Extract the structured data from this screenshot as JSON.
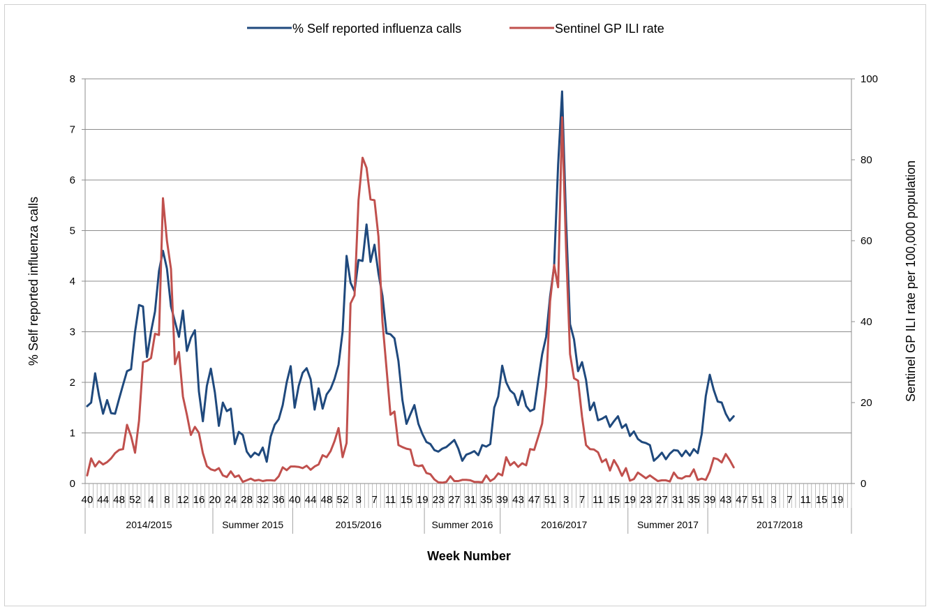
{
  "chart_data": {
    "type": "line",
    "title": "",
    "xlabel": "Week Number",
    "ylabel_left": "% Self reported influenza calls",
    "ylabel_right": "Sentinel GP ILI rate per 100,000 population",
    "ylim_left": [
      0,
      8
    ],
    "ylim_right": [
      0,
      100
    ],
    "yticks_left": [
      0,
      1,
      2,
      3,
      4,
      5,
      6,
      7,
      8
    ],
    "yticks_right": [
      0,
      20,
      40,
      60,
      80,
      100
    ],
    "grid": "horizontal",
    "legend_position": "top",
    "week_start": 40,
    "week_count": 192,
    "week_tick_labels": [
      "40",
      "44",
      "48",
      "52",
      "4",
      "8",
      "12",
      "16",
      "20",
      "24",
      "28",
      "32",
      "36",
      "40",
      "44",
      "48",
      "52",
      "3",
      "7",
      "11",
      "15",
      "19",
      "23",
      "27",
      "31",
      "35",
      "39",
      "43",
      "47",
      "51",
      "3",
      "7",
      "11",
      "15",
      "19",
      "23",
      "27",
      "31",
      "35",
      "39",
      "43",
      "47",
      "51",
      "3",
      "7",
      "11",
      "15",
      "19"
    ],
    "seasons": [
      {
        "label": "2014/2015",
        "start_index": 0,
        "end_index": 32
      },
      {
        "label": "Summer 2015",
        "start_index": 32,
        "end_index": 52
      },
      {
        "label": "2015/2016",
        "start_index": 52,
        "end_index": 85
      },
      {
        "label": "Summer 2016",
        "start_index": 85,
        "end_index": 104
      },
      {
        "label": "2016/2017",
        "start_index": 104,
        "end_index": 136
      },
      {
        "label": "Summer 2017",
        "start_index": 136,
        "end_index": 156
      },
      {
        "label": "2017/2018",
        "start_index": 156,
        "end_index": 192
      }
    ],
    "series": [
      {
        "name": "% Self reported influenza calls",
        "axis": "left",
        "color": "#1f497d",
        "values": [
          1.53,
          1.6,
          2.18,
          1.73,
          1.38,
          1.65,
          1.39,
          1.38,
          1.67,
          1.95,
          2.22,
          2.26,
          3.0,
          3.53,
          3.5,
          2.5,
          3.0,
          3.4,
          4.2,
          4.6,
          4.25,
          3.5,
          3.2,
          2.9,
          3.42,
          2.62,
          2.88,
          3.03,
          1.82,
          1.23,
          1.93,
          2.27,
          1.8,
          1.14,
          1.6,
          1.43,
          1.48,
          0.78,
          1.02,
          0.96,
          0.63,
          0.52,
          0.61,
          0.56,
          0.71,
          0.43,
          0.93,
          1.16,
          1.27,
          1.55,
          2.0,
          2.32,
          1.5,
          1.93,
          2.19,
          2.28,
          2.06,
          1.46,
          1.88,
          1.48,
          1.76,
          1.87,
          2.07,
          2.35,
          3.0,
          4.5,
          3.97,
          3.8,
          4.42,
          4.4,
          5.12,
          4.38,
          4.72,
          4.15,
          3.71,
          2.97,
          2.95,
          2.87,
          2.42,
          1.65,
          1.18,
          1.37,
          1.55,
          1.18,
          0.98,
          0.82,
          0.78,
          0.66,
          0.63,
          0.69,
          0.72,
          0.79,
          0.86,
          0.69,
          0.45,
          0.57,
          0.6,
          0.64,
          0.56,
          0.76,
          0.73,
          0.78,
          1.5,
          1.72,
          2.33,
          2.0,
          1.84,
          1.77,
          1.55,
          1.83,
          1.53,
          1.43,
          1.47,
          2.03,
          2.55,
          2.9,
          3.7,
          4.3,
          6.3,
          7.75,
          5.2,
          3.15,
          2.85,
          2.22,
          2.4,
          2.05,
          1.45,
          1.6,
          1.25,
          1.28,
          1.33,
          1.12,
          1.23,
          1.33,
          1.1,
          1.17,
          0.94,
          1.03,
          0.88,
          0.82,
          0.8,
          0.76,
          0.45,
          0.52,
          0.61,
          0.48,
          0.59,
          0.66,
          0.65,
          0.54,
          0.65,
          0.55,
          0.68,
          0.6,
          0.98,
          1.73,
          2.15,
          1.85,
          1.62,
          1.6,
          1.38,
          1.24,
          1.33
        ]
      },
      {
        "name": "Sentinel GP ILI rate",
        "axis": "right",
        "color": "#c0504d",
        "values": [
          2,
          6.2,
          4.2,
          5.5,
          4.7,
          5.3,
          6.2,
          7.5,
          8.3,
          8.5,
          14.5,
          11.7,
          7.6,
          15.5,
          30,
          30.3,
          31,
          37,
          36.7,
          70.5,
          60,
          53,
          29.5,
          32.5,
          21.5,
          17,
          12,
          14,
          12.5,
          7.5,
          4.3,
          3.5,
          3.2,
          3.8,
          2,
          1.6,
          3,
          1.6,
          2,
          0.4,
          0.8,
          1.2,
          0.7,
          0.9,
          0.6,
          0.8,
          0.8,
          0.7,
          1.8,
          4,
          3.3,
          4.2,
          4.2,
          4.1,
          3.8,
          4.4,
          3.4,
          4.2,
          4.7,
          7,
          6.5,
          8,
          10.5,
          13.7,
          6.5,
          10,
          44.5,
          46.5,
          70,
          80.5,
          78,
          70.2,
          70,
          61,
          40,
          28.5,
          17,
          17.8,
          9.5,
          9,
          8.6,
          8.4,
          4.6,
          4.3,
          4.5,
          2.6,
          2.3,
          1,
          0.3,
          0.2,
          0.4,
          1.8,
          0.6,
          0.6,
          0.9,
          0.9,
          0.8,
          0.4,
          0.4,
          0.3,
          2,
          0.6,
          1.2,
          2.5,
          2,
          6.5,
          4.5,
          5.3,
          4.1,
          5,
          4.5,
          8.5,
          8.3,
          11.5,
          14.8,
          24,
          45,
          54,
          48.5,
          90.5,
          58,
          32,
          26,
          25.4,
          16.5,
          9.5,
          8.5,
          8.4,
          7.7,
          5.3,
          6,
          3.2,
          5.8,
          4.1,
          1.9,
          3.8,
          0.7,
          1.1,
          2.7,
          2,
          1.3,
          2,
          1.3,
          0.6,
          0.8,
          0.8,
          0.5,
          2.7,
          1.4,
          1.2,
          1.8,
          1.8,
          3.5,
          0.9,
          1.2,
          0.9,
          3,
          6.3,
          6,
          5.2,
          7.3,
          5.8,
          4
        ]
      }
    ]
  }
}
